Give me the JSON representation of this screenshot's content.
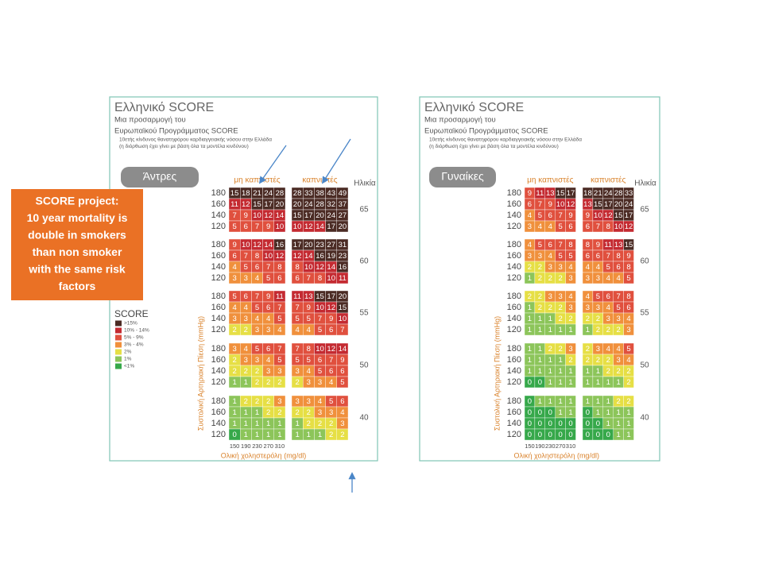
{
  "callout": {
    "lines": [
      "SCORE project:",
      "10 year mortality is",
      "double in smokers",
      "than non smoker",
      "with the same risk",
      "factors"
    ]
  },
  "legend": {
    "title": "SCORE",
    "items": [
      {
        "label": ">15%",
        "color": "#4b2b24"
      },
      {
        "label": "10% - 14%",
        "color": "#c42a31"
      },
      {
        "label": "5% - 9%",
        "color": "#e0503e"
      },
      {
        "label": "3% - 4%",
        "color": "#f0903c"
      },
      {
        "label": "2%",
        "color": "#e6df45"
      },
      {
        "label": "1%",
        "color": "#8cc55a"
      },
      {
        "label": "<1%",
        "color": "#36a84a"
      }
    ]
  },
  "panels": [
    {
      "title": "Ελληνικό SCORE",
      "subtitle": [
        "Μια προσαρμογή του",
        "Ευρωπαϊκού Προγράμματος SCORE"
      ],
      "note": [
        "10ετής κίνδυνος θανατηφόρου καρδιαγγειακής νόσου στην Ελλάδα",
        "(η διόρθωση έχει γίνει με βάση όλα τα μοντέλα κινδύνου)"
      ],
      "sex": "Άντρες",
      "col_headers": [
        "μη καπνιστές",
        "καπνιστές"
      ],
      "age_header": "Ηλικία",
      "bp_axis_label": "Συστολική Αρτηριακή Πίεση (mmHg)",
      "chol_axis_label": "Ολική χοληστερόλη (mg/dl)",
      "chol_levels": [
        150,
        190,
        230,
        270,
        310
      ],
      "blocks": [
        {
          "age": 65,
          "bp_levels": [
            180,
            160,
            140,
            120
          ],
          "nonsmoker": [
            [
              15,
              18,
              21,
              24,
              28
            ],
            [
              11,
              12,
              15,
              17,
              20
            ],
            [
              7,
              9,
              10,
              12,
              14
            ],
            [
              5,
              6,
              7,
              9,
              10
            ]
          ],
          "smoker": [
            [
              28,
              33,
              38,
              43,
              49
            ],
            [
              20,
              24,
              28,
              32,
              37
            ],
            [
              15,
              17,
              20,
              24,
              27
            ],
            [
              10,
              12,
              14,
              17,
              20
            ]
          ]
        },
        {
          "age": 60,
          "bp_levels": [
            180,
            160,
            140,
            120
          ],
          "nonsmoker": [
            [
              9,
              10,
              12,
              14,
              16
            ],
            [
              6,
              7,
              8,
              10,
              12
            ],
            [
              4,
              5,
              6,
              7,
              8
            ],
            [
              3,
              3,
              4,
              5,
              6
            ]
          ],
          "smoker": [
            [
              17,
              20,
              23,
              27,
              31
            ],
            [
              12,
              14,
              16,
              19,
              23
            ],
            [
              8,
              10,
              12,
              14,
              16
            ],
            [
              6,
              7,
              8,
              10,
              11
            ]
          ]
        },
        {
          "age": 55,
          "bp_levels": [
            180,
            160,
            140,
            120
          ],
          "nonsmoker": [
            [
              5,
              6,
              7,
              9,
              11
            ],
            [
              4,
              4,
              5,
              6,
              7
            ],
            [
              3,
              3,
              4,
              4,
              5
            ],
            [
              2,
              2,
              3,
              3,
              4
            ]
          ],
          "smoker": [
            [
              11,
              13,
              15,
              17,
              20
            ],
            [
              7,
              9,
              10,
              12,
              15
            ],
            [
              5,
              5,
              7,
              9,
              10
            ],
            [
              4,
              4,
              5,
              6,
              7
            ]
          ]
        },
        {
          "age": 50,
          "bp_levels": [
            180,
            160,
            140,
            120
          ],
          "nonsmoker": [
            [
              3,
              4,
              5,
              6,
              7
            ],
            [
              2,
              3,
              3,
              4,
              5
            ],
            [
              2,
              2,
              2,
              3,
              3
            ],
            [
              1,
              1,
              2,
              2,
              2
            ]
          ],
          "smoker": [
            [
              7,
              8,
              10,
              12,
              14
            ],
            [
              5,
              5,
              6,
              7,
              9
            ],
            [
              3,
              4,
              5,
              6,
              6
            ],
            [
              2,
              3,
              3,
              4,
              5
            ]
          ]
        },
        {
          "age": 40,
          "bp_levels": [
            180,
            160,
            140,
            120
          ],
          "nonsmoker": [
            [
              1,
              2,
              2,
              2,
              3
            ],
            [
              1,
              1,
              1,
              2,
              2
            ],
            [
              1,
              1,
              1,
              1,
              1
            ],
            [
              0,
              1,
              1,
              1,
              1
            ]
          ],
          "smoker": [
            [
              3,
              3,
              4,
              5,
              6
            ],
            [
              2,
              2,
              3,
              3,
              4
            ],
            [
              1,
              2,
              2,
              2,
              3
            ],
            [
              1,
              1,
              1,
              2,
              2
            ]
          ]
        }
      ]
    },
    {
      "title": "Ελληνικό SCORE",
      "subtitle": [
        "Μια προσαρμογή του",
        "Ευρωπαϊκού Προγράμματος SCORE"
      ],
      "note": [
        "10ετής κίνδυνος θανατηφόρου καρδιαγγειακής νόσου στην Ελλάδα",
        "(η διόρθωση έχει γίνει με βάση όλα τα μοντέλα κινδύνου)"
      ],
      "sex": "Γυναίκες",
      "col_headers": [
        "μη καπνιστές",
        "καπνιστές"
      ],
      "age_header": "Ηλικία",
      "bp_axis_label": "Συστολική Αρτηριακή Πίεση (mmHg)",
      "chol_axis_label": "Ολική χοληστερόλη (mg/dl)",
      "chol_levels": [
        150,
        190,
        230,
        270,
        310
      ],
      "blocks": [
        {
          "age": 65,
          "bp_levels": [
            180,
            160,
            140,
            120
          ],
          "nonsmoker": [
            [
              9,
              11,
              13,
              15,
              17
            ],
            [
              6,
              7,
              9,
              10,
              12
            ],
            [
              4,
              5,
              6,
              7,
              9
            ],
            [
              3,
              4,
              4,
              5,
              6
            ]
          ],
          "smoker": [
            [
              18,
              21,
              24,
              28,
              33
            ],
            [
              13,
              15,
              17,
              20,
              24
            ],
            [
              9,
              10,
              12,
              15,
              17
            ],
            [
              6,
              7,
              8,
              10,
              12
            ]
          ]
        },
        {
          "age": 60,
          "bp_levels": [
            180,
            160,
            140,
            120
          ],
          "nonsmoker": [
            [
              4,
              5,
              6,
              7,
              8
            ],
            [
              3,
              3,
              4,
              5,
              5
            ],
            [
              2,
              2,
              3,
              3,
              4
            ],
            [
              1,
              2,
              2,
              2,
              3
            ]
          ],
          "smoker": [
            [
              8,
              9,
              11,
              13,
              15
            ],
            [
              6,
              6,
              7,
              8,
              9
            ],
            [
              4,
              4,
              5,
              6,
              8
            ],
            [
              3,
              3,
              4,
              4,
              5
            ]
          ]
        },
        {
          "age": 55,
          "bp_levels": [
            180,
            160,
            140,
            120
          ],
          "nonsmoker": [
            [
              2,
              2,
              3,
              3,
              4
            ],
            [
              1,
              2,
              2,
              2,
              3
            ],
            [
              1,
              1,
              1,
              2,
              2
            ],
            [
              1,
              1,
              1,
              1,
              1
            ]
          ],
          "smoker": [
            [
              4,
              5,
              6,
              7,
              8
            ],
            [
              3,
              3,
              4,
              5,
              6
            ],
            [
              2,
              2,
              3,
              3,
              4
            ],
            [
              1,
              2,
              2,
              2,
              3
            ]
          ]
        },
        {
          "age": 50,
          "bp_levels": [
            180,
            160,
            140,
            120
          ],
          "nonsmoker": [
            [
              1,
              1,
              2,
              2,
              3
            ],
            [
              1,
              1,
              1,
              1,
              2
            ],
            [
              1,
              1,
              1,
              1,
              1
            ],
            [
              0,
              0,
              1,
              1,
              1
            ]
          ],
          "smoker": [
            [
              2,
              3,
              4,
              4,
              5
            ],
            [
              2,
              2,
              2,
              3,
              4
            ],
            [
              1,
              1,
              2,
              2,
              2
            ],
            [
              1,
              1,
              1,
              1,
              2
            ]
          ]
        },
        {
          "age": 40,
          "bp_levels": [
            180,
            160,
            140,
            120
          ],
          "nonsmoker": [
            [
              0,
              1,
              1,
              1,
              1
            ],
            [
              0,
              0,
              0,
              1,
              1
            ],
            [
              0,
              0,
              0,
              0,
              0
            ],
            [
              0,
              0,
              0,
              0,
              0
            ]
          ],
          "smoker": [
            [
              1,
              1,
              1,
              2,
              2
            ],
            [
              0,
              1,
              1,
              1,
              1
            ],
            [
              0,
              0,
              1,
              1,
              1
            ],
            [
              0,
              0,
              0,
              1,
              1
            ]
          ]
        }
      ]
    }
  ]
}
